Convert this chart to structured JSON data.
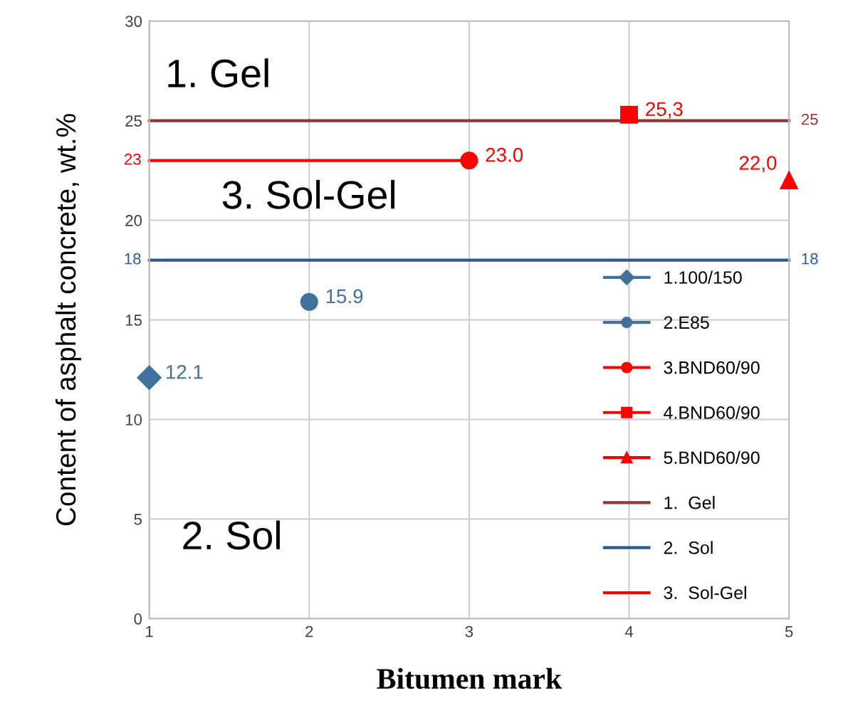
{
  "chart_data": {
    "type": "line",
    "xlabel": "Bitumen mark",
    "ylabel": "Content of asphalt concrete, wt.%",
    "xlim": [
      1,
      5
    ],
    "xticks": [
      1,
      2,
      3,
      4,
      5
    ],
    "ylim": [
      0,
      30
    ],
    "yticks": [
      0,
      5,
      10,
      15,
      20,
      25,
      30
    ],
    "grid": true,
    "legend": "bottom right",
    "annotations": [
      "1. Gel",
      "3. Sol-Gel",
      "2. Sol"
    ],
    "series": [
      {
        "name": "1.100/150",
        "color": "#41719c",
        "x": [
          1
        ],
        "values": [
          12.1
        ],
        "marker": "diamond",
        "value_labels": [
          "12.1"
        ]
      },
      {
        "name": "2.E85",
        "color": "#41719c",
        "x": [
          2
        ],
        "values": [
          15.9
        ],
        "marker": "circle",
        "value_labels": [
          "15.9"
        ]
      },
      {
        "name": "3.BND60/90",
        "color": "#ff0000",
        "x": [
          3
        ],
        "values": [
          23.0
        ],
        "marker": "circle",
        "value_labels": [
          "23.0"
        ]
      },
      {
        "name": "4.BND60/90",
        "color": "#ff0000",
        "x": [
          4
        ],
        "values": [
          25.3
        ],
        "marker": "square",
        "value_labels": [
          "25,3"
        ]
      },
      {
        "name": "5.BND60/90",
        "color": "#ff0000",
        "x": [
          5
        ],
        "values": [
          22.0
        ],
        "marker": "triangle",
        "value_labels": [
          "22,0"
        ]
      },
      {
        "name": "1.  Gel",
        "color": "#8b3a3a",
        "x": [
          1,
          5
        ],
        "values": [
          25,
          25
        ],
        "marker": "none",
        "value_labels": [
          null,
          "25"
        ]
      },
      {
        "name": "2.  Sol",
        "color": "#2e5a94",
        "x": [
          1,
          5
        ],
        "values": [
          18,
          18
        ],
        "marker": "none",
        "value_labels": [
          "18",
          "18"
        ]
      },
      {
        "name": "3.  Sol-Gel",
        "color": "#ff0000",
        "x": [
          1,
          3
        ],
        "values": [
          23,
          23
        ],
        "marker": "none",
        "value_labels": [
          "23",
          null
        ]
      }
    ]
  }
}
